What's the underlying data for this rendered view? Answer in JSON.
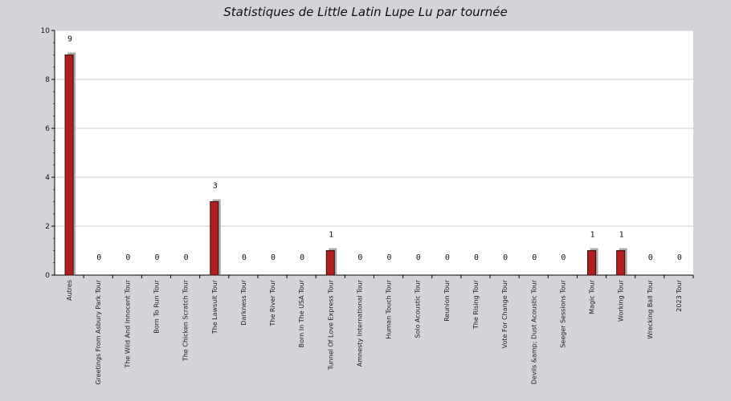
{
  "title": "Statistiques de Little Latin Lupe Lu par tournée",
  "chart_data": {
    "type": "bar",
    "title": "Statistiques de Little Latin Lupe Lu par tournée",
    "xlabel": "",
    "ylabel": "",
    "ylim": [
      0,
      10
    ],
    "yticks": [
      0,
      2,
      4,
      6,
      8,
      10
    ],
    "grid": true,
    "categories": [
      "Autres",
      "Greetings From Asbury Park Tour",
      "The Wild And Innocent Tour",
      "Born To Run Tour",
      "The Chicken Scratch Tour",
      "The Lawsuit Tour",
      "Darkness Tour",
      "The River Tour",
      "Born In The USA Tour",
      "Tunnel Of Love Express Tour",
      "Amnesty International Tour",
      "Human Touch Tour",
      "Solo Acoustic Tour",
      "Reunion Tour",
      "The Rising Tour",
      "Vote For Change Tour",
      "Devils &amp; Dust Acoustic Tour",
      "Seeger Sessions Tour",
      "Magic Tour",
      "Working Tour",
      "Wrecking Ball Tour",
      "2023 Tour"
    ],
    "values": [
      9,
      0,
      0,
      0,
      0,
      3,
      0,
      0,
      0,
      1,
      0,
      0,
      0,
      0,
      0,
      0,
      0,
      0,
      1,
      1,
      0,
      0
    ],
    "colors": {
      "bar": "#b01e1e",
      "bar_edge": "#3a0a0a",
      "shadow": "#a9a9a9",
      "grid": "#cfcfcf",
      "plot_bg": "#ffffff"
    }
  }
}
